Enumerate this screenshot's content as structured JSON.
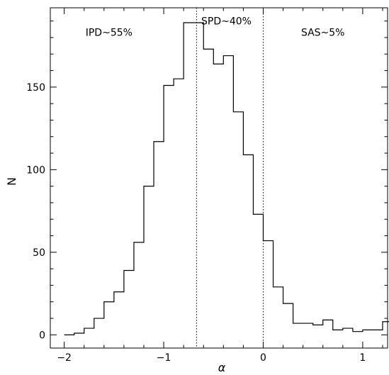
{
  "chart_data": {
    "type": "histogram",
    "xlabel": "α",
    "ylabel": "N",
    "xlim": [
      -2.14,
      1.25
    ],
    "ylim": [
      -8,
      198
    ],
    "xticks_major": [
      -2,
      -1,
      0,
      1
    ],
    "xtick_labels": [
      "−2",
      "−1",
      "0",
      "1"
    ],
    "xticks_minor_step": 0.2,
    "yticks_major": [
      0,
      50,
      100,
      150
    ],
    "ytick_labels": [
      "0",
      "50",
      "100",
      "150"
    ],
    "yticks_minor_step": 10,
    "grid": false,
    "bin_width": 0.1,
    "bin_edges_start": -2.0,
    "counts": [
      0,
      1,
      4,
      10,
      20,
      26,
      39,
      56,
      90,
      117,
      151,
      155,
      189,
      189,
      173,
      164,
      169,
      135,
      109,
      73,
      57,
      29,
      19,
      7,
      7,
      6,
      9,
      3,
      4,
      2,
      3,
      3,
      8
    ],
    "dividers": [
      {
        "x": -0.67,
        "style": "dotted"
      },
      {
        "x": 0.0,
        "style": "dotted"
      }
    ],
    "annotations": [
      {
        "text": "IPD~55%",
        "x": -1.55,
        "y": 181
      },
      {
        "text": "SPD~40%",
        "x": -0.37,
        "y": 188
      },
      {
        "text": "SAS~5%",
        "x": 0.6,
        "y": 181
      }
    ]
  }
}
